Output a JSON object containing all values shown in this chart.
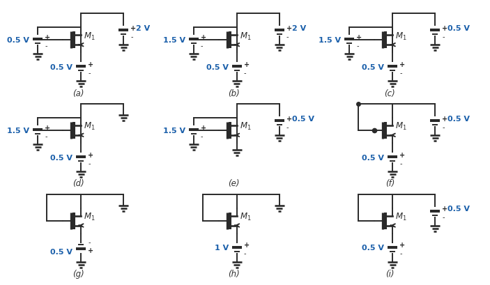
{
  "bg_color": "#ffffff",
  "text_color": "#1a5faa",
  "line_color": "#2a2a2a",
  "fig_width": 6.71,
  "fig_height": 3.89,
  "circuits": [
    {
      "label": "(a)",
      "vg_label": "0.5 V",
      "vs_label": "0.5 V",
      "vd_label": "2 V",
      "has_vg": true,
      "has_vs": true,
      "has_vd": true,
      "gate_dot": false,
      "vs_plus_bottom": false,
      "vg_plus_top": true
    },
    {
      "label": "(b)",
      "vg_label": "1.5 V",
      "vs_label": "0.5 V",
      "vd_label": "2 V",
      "has_vg": true,
      "has_vs": true,
      "has_vd": true,
      "gate_dot": false,
      "vs_plus_bottom": false,
      "vg_plus_top": true
    },
    {
      "label": "(c)",
      "vg_label": "1.5 V",
      "vs_label": "0.5 V",
      "vd_label": "0.5 V",
      "has_vg": true,
      "has_vs": true,
      "has_vd": true,
      "gate_dot": false,
      "vs_plus_bottom": false,
      "vg_plus_top": true
    },
    {
      "label": "(d)",
      "vg_label": "1.5 V",
      "vs_label": "0.5 V",
      "vd_label": null,
      "has_vg": true,
      "has_vs": true,
      "has_vd": false,
      "gate_dot": false,
      "vs_plus_bottom": false,
      "vg_plus_top": true
    },
    {
      "label": "(e)",
      "vg_label": "1.5 V",
      "vs_label": null,
      "vd_label": "0.5 V",
      "has_vg": true,
      "has_vs": false,
      "has_vd": true,
      "gate_dot": false,
      "vs_plus_bottom": false,
      "vg_plus_top": true
    },
    {
      "label": "(f)",
      "vg_label": null,
      "vs_label": "0.5 V",
      "vd_label": "0.5 V",
      "has_vg": false,
      "has_vs": true,
      "has_vd": true,
      "gate_dot": true,
      "vs_plus_bottom": false,
      "vg_plus_top": false
    },
    {
      "label": "(g)",
      "vg_label": null,
      "vs_label": "0.5 V",
      "vd_label": null,
      "has_vg": false,
      "has_vs": true,
      "has_vd": false,
      "gate_dot": false,
      "vs_plus_bottom": true,
      "vg_plus_top": false
    },
    {
      "label": "(h)",
      "vg_label": null,
      "vs_label": "1 V",
      "vd_label": null,
      "has_vg": false,
      "has_vs": true,
      "has_vd": false,
      "gate_dot": false,
      "vs_plus_bottom": false,
      "vg_plus_top": false
    },
    {
      "label": "(i)",
      "vg_label": null,
      "vs_label": "0.5 V",
      "vd_label": "0.5 V",
      "has_vg": false,
      "has_vs": true,
      "has_vd": true,
      "gate_dot": false,
      "vs_plus_bottom": false,
      "vg_plus_top": false
    }
  ]
}
